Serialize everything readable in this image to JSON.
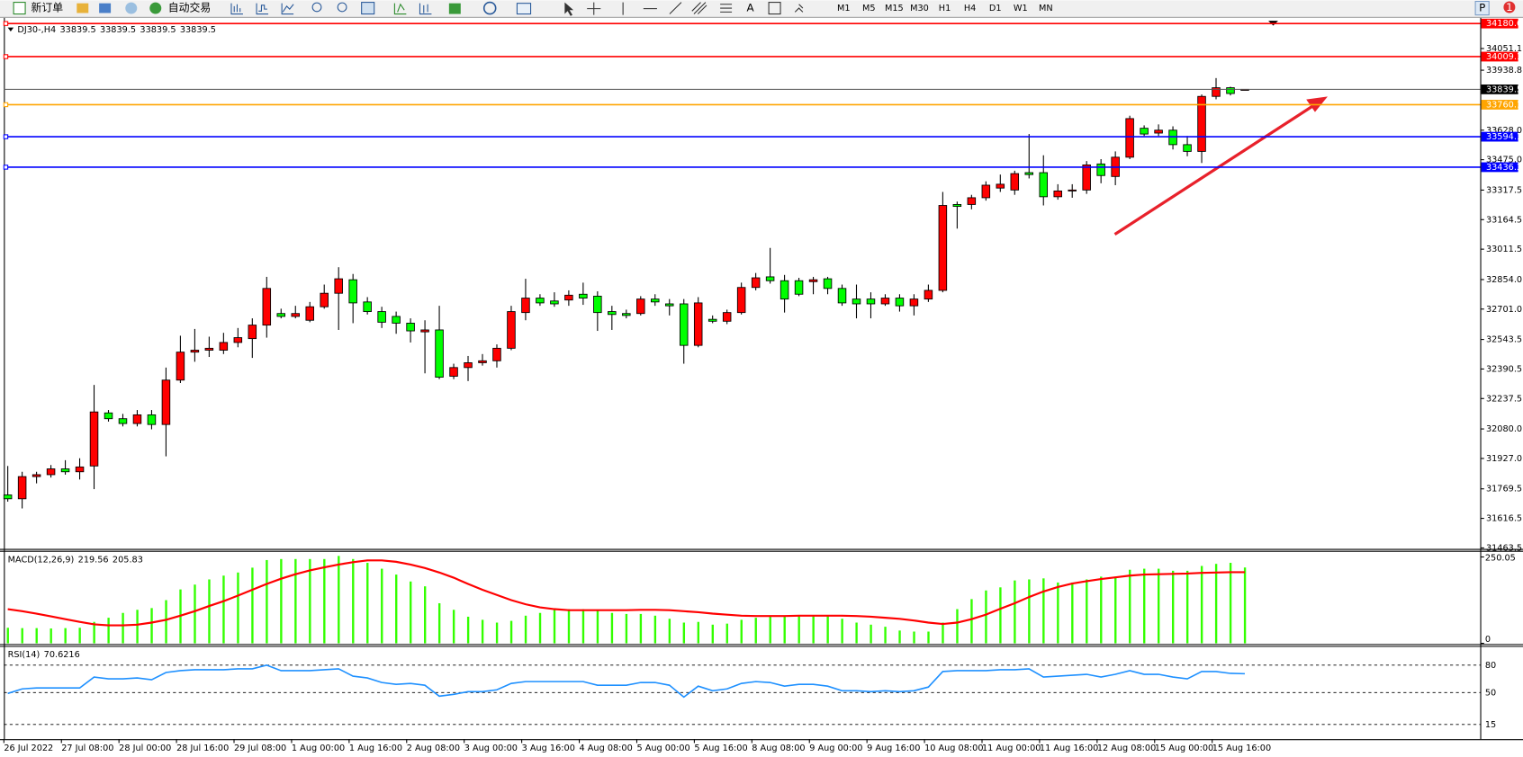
{
  "toolbar": {
    "new_order": "新订单",
    "auto_trading": "自动交易",
    "text_tool": "A",
    "timeframes": [
      "M1",
      "M5",
      "M15",
      "M30",
      "H1",
      "H4",
      "D1",
      "W1",
      "MN"
    ],
    "profile_label": "P",
    "notification_count": 1
  },
  "chart_data": [
    {
      "type": "candlestick",
      "symbol": "DJ30-,H4",
      "categories": [
        "26 Jul 2022",
        null,
        null,
        null,
        "27 Jul 08:00",
        null,
        null,
        null,
        "28 Jul 00:00",
        null,
        null,
        null,
        "28 Jul 16:00",
        null,
        null,
        null,
        "29 Jul 08:00",
        null,
        null,
        null,
        "1 Aug 00:00",
        null,
        null,
        null,
        "1 Aug 16:00",
        null,
        null,
        null,
        "2 Aug 08:00",
        null,
        null,
        null,
        "3 Aug 00:00",
        null,
        null,
        null,
        "3 Aug 16:00",
        null,
        null,
        null,
        "4 Aug 08:00",
        null,
        null,
        null,
        "5 Aug 00:00",
        null,
        null,
        null,
        "5 Aug 16:00",
        null,
        null,
        null,
        "8 Aug 08:00",
        null,
        null,
        null,
        "9 Aug 00:00",
        null,
        null,
        null,
        "9 Aug 16:00",
        null,
        null,
        null,
        "10 Aug 08:00",
        null,
        null,
        null,
        "11 Aug 00:00",
        null,
        null,
        null,
        "11 Aug 16:00",
        null,
        null,
        null,
        "12 Aug 08:00",
        null,
        null,
        null,
        "15 Aug 00:00",
        null,
        null,
        null,
        "15 Aug 16:00",
        null,
        null
      ],
      "open": [
        31738,
        31718,
        31833,
        31843,
        31873,
        31858,
        31888,
        32163,
        32133,
        32108,
        32153,
        32103,
        32333,
        32478,
        32488,
        32488,
        32528,
        32548,
        32618,
        32678,
        32663,
        32643,
        32713,
        32783,
        32853,
        32738,
        32688,
        32663,
        32628,
        32583,
        32593,
        32353,
        32398,
        32423,
        32433,
        32498,
        32683,
        32758,
        32743,
        32748,
        32778,
        32768,
        32688,
        32678,
        32678,
        32753,
        32728,
        32728,
        32513,
        32648,
        32638,
        32683,
        32813,
        32868,
        32848,
        32848,
        32843,
        32858,
        32808,
        32753,
        32753,
        32728,
        32758,
        32718,
        32753,
        32798,
        33243,
        33243,
        33278,
        33328,
        33318,
        33408,
        33408,
        33283,
        33313,
        33318,
        33453,
        33388,
        33488,
        33638,
        33613,
        33628,
        33553,
        33518,
        33803,
        33848,
        33839.5
      ],
      "high": [
        31888,
        31858,
        31858,
        31893,
        31918,
        31928,
        32308,
        32178,
        32158,
        32178,
        32178,
        32398,
        32563,
        32598,
        32558,
        32578,
        32603,
        32653,
        32868,
        32703,
        32718,
        32738,
        32828,
        32918,
        32883,
        32763,
        32713,
        32688,
        32653,
        32643,
        32718,
        32418,
        32458,
        32468,
        32518,
        32718,
        32858,
        32778,
        32788,
        32798,
        32838,
        32793,
        32718,
        32698,
        32768,
        32778,
        32753,
        32753,
        32763,
        32668,
        32698,
        32838,
        32888,
        33018,
        32878,
        32863,
        32868,
        32868,
        32828,
        32828,
        32788,
        32778,
        32778,
        32778,
        32828,
        33308,
        33258,
        33293,
        33363,
        33398,
        33418,
        33608,
        33498,
        33348,
        33348,
        33468,
        33478,
        33518,
        33703,
        33653,
        33658,
        33648,
        33598,
        33813,
        33898,
        33853,
        33839.5
      ],
      "low": [
        31703,
        31668,
        31798,
        31828,
        31843,
        31818,
        31768,
        32118,
        32093,
        32093,
        32078,
        31938,
        32318,
        32428,
        32453,
        32468,
        32503,
        32448,
        32553,
        32653,
        32653,
        32633,
        32703,
        32593,
        32628,
        32673,
        32603,
        32573,
        32528,
        32368,
        32338,
        32338,
        32328,
        32408,
        32398,
        32488,
        32643,
        32718,
        32713,
        32718,
        32723,
        32588,
        32593,
        32653,
        32668,
        32718,
        32668,
        32418,
        32503,
        32628,
        32623,
        32673,
        32798,
        32833,
        32683,
        32768,
        32778,
        32778,
        32718,
        32653,
        32653,
        32718,
        32688,
        32668,
        32738,
        32788,
        33118,
        33218,
        33263,
        33308,
        33293,
        33378,
        33238,
        33268,
        33278,
        33298,
        33353,
        33343,
        33478,
        33598,
        33598,
        33528,
        33493,
        33458,
        33788,
        33808,
        33839.5
      ],
      "close": [
        31718,
        31833,
        31843,
        31873,
        31858,
        31883,
        32168,
        32133,
        32108,
        32153,
        32103,
        32333,
        32478,
        32488,
        32498,
        32528,
        32553,
        32618,
        32808,
        32663,
        32678,
        32713,
        32783,
        32858,
        32733,
        32688,
        32633,
        32628,
        32588,
        32593,
        32348,
        32398,
        32423,
        32433,
        32498,
        32688,
        32758,
        32733,
        32728,
        32773,
        32758,
        32683,
        32673,
        32668,
        32753,
        32738,
        32718,
        32513,
        32733,
        32638,
        32683,
        32813,
        32863,
        32848,
        32753,
        32778,
        32853,
        32808,
        32733,
        32728,
        32728,
        32758,
        32718,
        32753,
        32798,
        33238,
        33233,
        33278,
        33343,
        33348,
        33403,
        33398,
        33283,
        33313,
        33318,
        33448,
        33393,
        33488,
        33688,
        33608,
        33628,
        33553,
        33518,
        33803,
        33848,
        33818,
        33839.5
      ],
      "up_color": "#ff0000",
      "down_color": "#00ff00",
      "ylim": [
        31458.5,
        34210
      ],
      "yticks": [
        34051.1,
        33938.8,
        {
          "value": 33628,
          "label": "33628.0"
        },
        {
          "value": 33475,
          "label": "33475.0"
        },
        33317.5,
        33164.5,
        33011.5,
        {
          "value": 32854,
          "label": "32854.0"
        },
        {
          "value": 32701,
          "label": "32701.0"
        },
        32543.5,
        32390.5,
        32237.5,
        {
          "value": 32080,
          "label": "32080.0"
        },
        {
          "value": 31927,
          "label": "31927.0"
        },
        31769.5,
        31616.5,
        31463.5
      ],
      "levels": [
        {
          "value": 34180.6,
          "color": "#ff0000"
        },
        {
          "value": 34009.1,
          "color": "#ff0000"
        },
        {
          "value": 33760.1,
          "color": "#ffa500"
        },
        {
          "value": 33594.1,
          "color": "#0000ff"
        },
        {
          "value": 33436.3,
          "color": "#0000ff"
        }
      ]
    },
    {
      "type": "macd",
      "title": "MACD(12,26,9)",
      "values": [
        45,
        44,
        44,
        43,
        44,
        45,
        62,
        74,
        88,
        97,
        102,
        125,
        156,
        170,
        185,
        196,
        205,
        219,
        241,
        244,
        244,
        244,
        244,
        253,
        244,
        233,
        216,
        199,
        179,
        165,
        116,
        97,
        77,
        68,
        60,
        65,
        80,
        88,
        97,
        99,
        99,
        97,
        88,
        85,
        85,
        80,
        71,
        60,
        62,
        54,
        57,
        68,
        74,
        77,
        80,
        80,
        80,
        80,
        71,
        60,
        54,
        48,
        37,
        34,
        34,
        60,
        99,
        128,
        153,
        162,
        182,
        185,
        188,
        176,
        176,
        185,
        193,
        193,
        213,
        216,
        216,
        210,
        210,
        224,
        230,
        233,
        219.56
      ],
      "signal": [
        99,
        93,
        86,
        78,
        70,
        62,
        55,
        52,
        52,
        54,
        60,
        68,
        80,
        93,
        108,
        122,
        138,
        155,
        172,
        187,
        200,
        211,
        220,
        228,
        235,
        240,
        240,
        236,
        228,
        218,
        205,
        190,
        172,
        155,
        140,
        125,
        113,
        104,
        99,
        96,
        96,
        96,
        96,
        96,
        97,
        97,
        96,
        93,
        90,
        86,
        83,
        80,
        79,
        79,
        79,
        80,
        80,
        80,
        80,
        79,
        77,
        74,
        71,
        66,
        60,
        56,
        60,
        70,
        83,
        100,
        116,
        134,
        150,
        163,
        173,
        180,
        186,
        191,
        196,
        199,
        200,
        201,
        202,
        204,
        205,
        206,
        205.83
      ],
      "color": "#33ff00",
      "signal_color": "#ff0000",
      "ylim": [
        -2,
        265
      ],
      "yticks": [
        0,
        250.05
      ]
    },
    {
      "type": "rsi",
      "title": "RSI(14)",
      "values": [
        49,
        54,
        55,
        55,
        55,
        55,
        67,
        65,
        65,
        66,
        64,
        72,
        74,
        75,
        75,
        75,
        76,
        76,
        80,
        74,
        74,
        74,
        75,
        76,
        68,
        66,
        61,
        59,
        60,
        58,
        46,
        48,
        51,
        51,
        53,
        60,
        62,
        62,
        62,
        62,
        62,
        58,
        58,
        58,
        61,
        61,
        58,
        45,
        57,
        52,
        54,
        60,
        62,
        61,
        57,
        59,
        59,
        57,
        52,
        52,
        51,
        52,
        51,
        52,
        56,
        73,
        74,
        74,
        74,
        75,
        75,
        76,
        67,
        68,
        69,
        70,
        67,
        70,
        74,
        70,
        70,
        67,
        65,
        73,
        73,
        71,
        70.6216
      ],
      "color": "#1e90ff",
      "ylim": [
        0,
        100
      ],
      "yticks": [
        15,
        50,
        80
      ]
    }
  ]
}
